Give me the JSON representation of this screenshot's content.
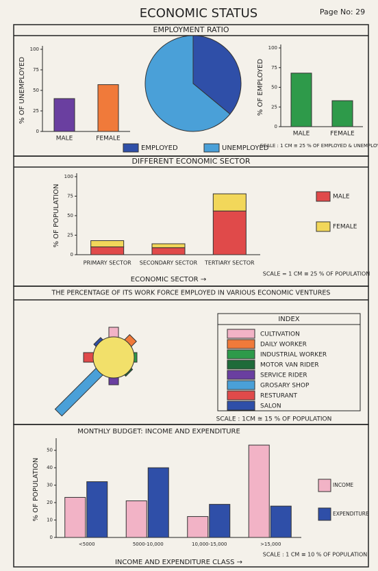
{
  "header": {
    "title": "ECONOMIC STATUS",
    "page": "Page No: 29"
  },
  "sections": [
    {
      "title": "EMPLOYMENT RATIO",
      "scale": "SCALE : 1 CM ≅ 25 % OF EMPLOYED & UNEMPLOYED"
    },
    {
      "title": "DIFFERENT ECONOMIC SECTOR",
      "scale": "SCALE = 1 CM ≅ 25 % OF POPULATION"
    },
    {
      "title": "THE PERCENTAGE OF ITS WORK FORCE EMPLOYED IN VARIOUS ECONOMIC VENTURES",
      "scale": "SCALE : 1CM ≅ 15 % OF POPULATION"
    },
    {
      "scale": "SCALE : 1 CM ≅ 10 % OF POPULATION"
    }
  ],
  "chart_data": [
    {
      "type": "bar",
      "ylabel": "% OF UNEMPLOYED",
      "categories": [
        "MALE",
        "FEMALE"
      ],
      "values": [
        40,
        57
      ],
      "colors": [
        "#6a3fa0",
        "#f07a3a"
      ],
      "ylim": [
        0,
        100
      ],
      "yticks": [
        0,
        25,
        50,
        75,
        100
      ]
    },
    {
      "type": "pie",
      "categories": [
        "EMPLOYED",
        "UNEMPLOYED"
      ],
      "values": [
        36,
        64
      ],
      "colors": [
        "#2f4fa8",
        "#4aa0d8"
      ]
    },
    {
      "type": "bar",
      "ylabel": "% OF EMPLOYED",
      "categories": [
        "MALE",
        "FEMALE"
      ],
      "values": [
        68,
        33
      ],
      "colors": [
        "#2e9a4a",
        "#2e9a4a"
      ],
      "ylim": [
        0,
        100
      ],
      "yticks": [
        0,
        25,
        50,
        75,
        100
      ]
    },
    {
      "type": "stacked",
      "ylabel": "% OF POPULATION",
      "xlabel": "ECONOMIC SECTOR →",
      "categories": [
        "PRIMARY SECTOR",
        "SECONDARY SECTOR",
        "TERTIARY SECTOR"
      ],
      "series": [
        {
          "name": "MALE",
          "color": "#e04a4a",
          "values": [
            10,
            9,
            56
          ]
        },
        {
          "name": "FEMALE",
          "color": "#f2d75a",
          "values": [
            8,
            5,
            22
          ]
        }
      ],
      "ylim": [
        0,
        100
      ],
      "yticks": [
        0,
        25,
        50,
        75,
        100
      ]
    },
    {
      "type": "radial",
      "index_title": "INDEX",
      "categories": [
        "CULTIVATION",
        "DAILY WORKER",
        "INDUSTRIAL WORKER",
        "MOTOR VAN RIDER",
        "SERVICE RIDER",
        "GROSARY SHOP",
        "RESTURANT",
        "SALON"
      ],
      "values": [
        10,
        8,
        5,
        4,
        8,
        45,
        10,
        5
      ],
      "colors": [
        "#f2b3c6",
        "#f07a3a",
        "#2e9a4a",
        "#1f6b3a",
        "#6a3fa0",
        "#4aa0d8",
        "#e04a4a",
        "#2f4fa8"
      ]
    },
    {
      "type": "grouped",
      "title": "MONTHLY BUDGET: INCOME AND EXPENDITURE",
      "ylabel": "% OF POPULATION",
      "xlabel": "INCOME AND EXPENDITURE CLASS →",
      "categories": [
        "<5000",
        "5000-10,000",
        "10,000-15,000",
        ">15,000"
      ],
      "series": [
        {
          "name": "INCOME",
          "color": "#f2b3c6",
          "values": [
            23,
            21,
            12,
            53
          ]
        },
        {
          "name": "EXPENDITURE",
          "color": "#2f4fa8",
          "values": [
            32,
            40,
            19,
            18
          ]
        }
      ],
      "ylim": [
        0,
        55
      ],
      "yticks": [
        0,
        10,
        20,
        30,
        40,
        50
      ]
    }
  ]
}
